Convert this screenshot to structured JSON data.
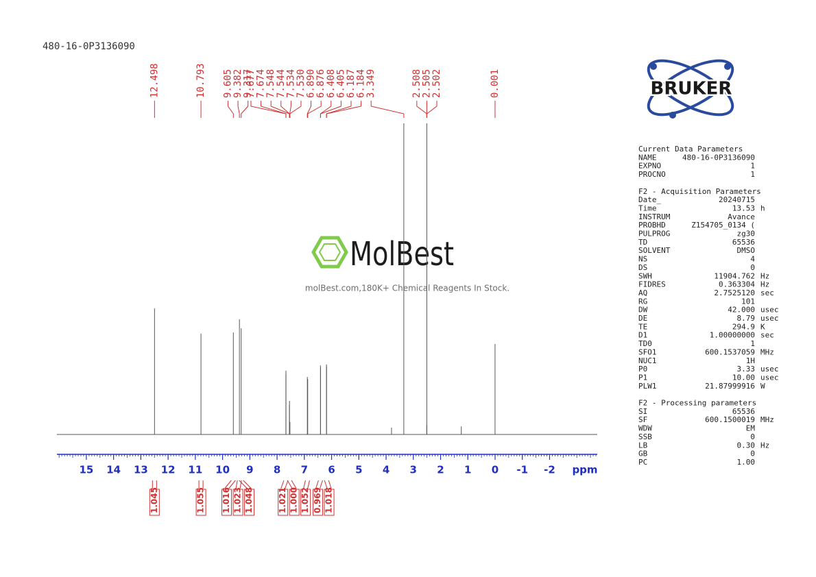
{
  "chart_data": {
    "type": "nmr",
    "title": "480-16-0P3136090",
    "x_label": "ppm",
    "xlim": [
      16.08,
      -3.75
    ],
    "xticks": [
      15,
      14,
      13,
      12,
      11,
      10,
      9,
      8,
      7,
      6,
      5,
      4,
      3,
      2,
      1,
      0,
      -1,
      -2
    ],
    "ylim": [
      0,
      100
    ],
    "color": "#555555",
    "label_color": "#d03030",
    "axis_color": "#1f2fbf",
    "peaks": {
      "x": [
        12.498,
        10.793,
        9.605,
        9.382,
        9.317,
        7.677,
        7.674,
        7.548,
        7.544,
        7.534,
        7.53,
        6.89,
        6.876,
        6.408,
        6.405,
        6.187,
        6.184,
        3.8,
        3.349,
        2.508,
        2.505,
        2.502,
        1.24,
        0.001
      ],
      "values": [
        40.5,
        32.4,
        32.8,
        37.0,
        34.1,
        19.5,
        20.5,
        9.5,
        10.8,
        4,
        4,
        18.5,
        17.8,
        22.2,
        21.5,
        22.5,
        21.8,
        2.2,
        100,
        3,
        100,
        3,
        2.6,
        29.1
      ]
    },
    "peak_picks": {
      "values": [
        12.498,
        10.793,
        9.605,
        9.382,
        9.317,
        7.677,
        7.674,
        7.548,
        7.544,
        7.534,
        7.53,
        6.89,
        6.876,
        6.408,
        6.405,
        6.187,
        6.184,
        3.349,
        2.508,
        2.505,
        2.502,
        0.001
      ],
      "value_labels": [
        "12.498",
        "10.793",
        "9.605",
        "9.382",
        "9.317",
        "7.677",
        "7.674",
        "7.548",
        "7.544",
        "7.534",
        "7.530",
        "6.890",
        "6.876",
        "6.408",
        "6.405",
        "6.187",
        "6.184",
        "3.349",
        "2.508",
        "2.505",
        "2.502",
        "0.001"
      ]
    },
    "integrals": {
      "x": [
        12.498,
        10.793,
        9.605,
        9.382,
        9.317,
        7.676,
        7.546,
        6.883,
        6.406,
        6.185
      ],
      "values": [
        1.045,
        1.055,
        1.016,
        1.023,
        1.048,
        1.021,
        1.0,
        1.052,
        0.969,
        1.018
      ],
      "value_labels": [
        "1.045",
        "1.055",
        "1.016",
        "1.023",
        "1.048",
        "1.021",
        "1.000",
        "1.052",
        "0.969",
        "1.018"
      ]
    }
  },
  "logo": "BRUKER",
  "watermark": {
    "brand": "MolBest",
    "tagline": "molBest.com,180K+ Chemical Reagents In Stock."
  },
  "parameters": [
    {
      "heading": "Current Data Parameters",
      "rows": [
        [
          "NAME",
          "480-16-0P3136090"
        ],
        [
          "EXPNO",
          "1"
        ],
        [
          "PROCNO",
          "1"
        ]
      ]
    },
    {
      "heading": "F2 - Acquisition Parameters",
      "rows": [
        [
          "Date_",
          "20240715"
        ],
        [
          "Time",
          "13.53",
          "h"
        ],
        [
          "INSTRUM",
          "Avance"
        ],
        [
          "PROBHD",
          "Z154705_0134 ("
        ],
        [
          "PULPROG",
          "zg30"
        ],
        [
          "TD",
          "65536"
        ],
        [
          "SOLVENT",
          "DMSO"
        ],
        [
          "NS",
          "4"
        ],
        [
          "DS",
          "0"
        ],
        [
          "SWH",
          "11904.762",
          "Hz"
        ],
        [
          "FIDRES",
          "0.363304",
          "Hz"
        ],
        [
          "AQ",
          "2.7525120",
          "sec"
        ],
        [
          "RG",
          "101"
        ],
        [
          "DW",
          "42.000",
          "usec"
        ],
        [
          "DE",
          "8.79",
          "usec"
        ],
        [
          "TE",
          "294.9",
          "K"
        ],
        [
          "D1",
          "1.00000000",
          "sec"
        ],
        [
          "TD0",
          "1"
        ],
        [
          "SFO1",
          "600.1537059",
          "MHz"
        ],
        [
          "NUC1",
          "1H"
        ],
        [
          "P0",
          "3.33",
          "usec"
        ],
        [
          "P1",
          "10.00",
          "usec"
        ],
        [
          "PLW1",
          "21.87999916",
          "W"
        ]
      ]
    },
    {
      "heading": "F2 - Processing parameters",
      "rows": [
        [
          "SI",
          "65536"
        ],
        [
          "SF",
          "600.1500019",
          "MHz"
        ],
        [
          "WDW",
          "EM"
        ],
        [
          "SSB",
          "0"
        ],
        [
          "LB",
          "0.30",
          "Hz"
        ],
        [
          "GB",
          "0"
        ],
        [
          "PC",
          "1.00"
        ]
      ]
    }
  ]
}
